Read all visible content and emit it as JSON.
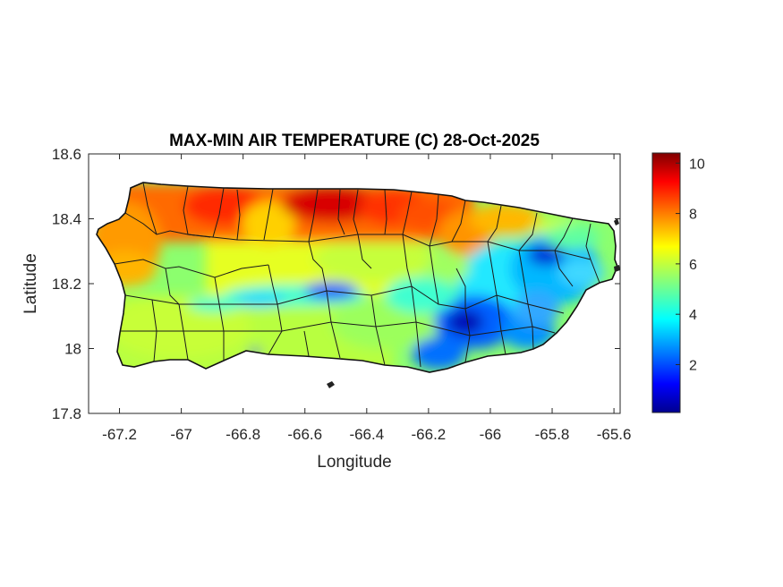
{
  "chart_data": {
    "type": "heatmap",
    "title": "MAX-MIN AIR TEMPERATURE (C) 28-Oct-2025",
    "xlabel": "Longitude",
    "ylabel": "Latitude",
    "xlim": [
      -67.3,
      -65.58
    ],
    "ylim": [
      17.8,
      18.6
    ],
    "x_ticks": [
      "-67.2",
      "-67",
      "-66.8",
      "-66.6",
      "-66.4",
      "-66.2",
      "-66",
      "-65.8",
      "-65.6"
    ],
    "x_tick_values": [
      -67.2,
      -67.0,
      -66.8,
      -66.6,
      -66.4,
      -66.2,
      -66.0,
      -65.8,
      -65.6
    ],
    "y_ticks": [
      "18.6",
      "18.4",
      "18.2",
      "18",
      "17.8"
    ],
    "y_tick_values": [
      18.6,
      18.4,
      18.2,
      18.0,
      17.8
    ],
    "colorbar": {
      "colormap": "jet",
      "range": [
        0.1,
        10.4
      ],
      "ticks": [
        "10",
        "8",
        "6",
        "4",
        "2"
      ],
      "tick_values": [
        10,
        8,
        6,
        4,
        2
      ]
    },
    "grid": false,
    "region_values": [
      {
        "lon": -67.1,
        "lat": 18.45,
        "value": 8.5
      },
      {
        "lon": -66.9,
        "lat": 18.45,
        "value": 9.3
      },
      {
        "lon": -66.55,
        "lat": 18.43,
        "value": 10.0
      },
      {
        "lon": -66.3,
        "lat": 18.42,
        "value": 8.8
      },
      {
        "lon": -66.0,
        "lat": 18.4,
        "value": 7.0
      },
      {
        "lon": -65.8,
        "lat": 18.3,
        "value": 3.0
      },
      {
        "lon": -66.1,
        "lat": 18.07,
        "value": 1.5
      },
      {
        "lon": -66.5,
        "lat": 18.17,
        "value": 2.8
      },
      {
        "lon": -67.1,
        "lat": 18.05,
        "value": 5.5
      },
      {
        "lon": -66.6,
        "lat": 18.0,
        "value": 5.0
      },
      {
        "lon": -65.7,
        "lat": 18.1,
        "value": 3.5
      }
    ]
  }
}
